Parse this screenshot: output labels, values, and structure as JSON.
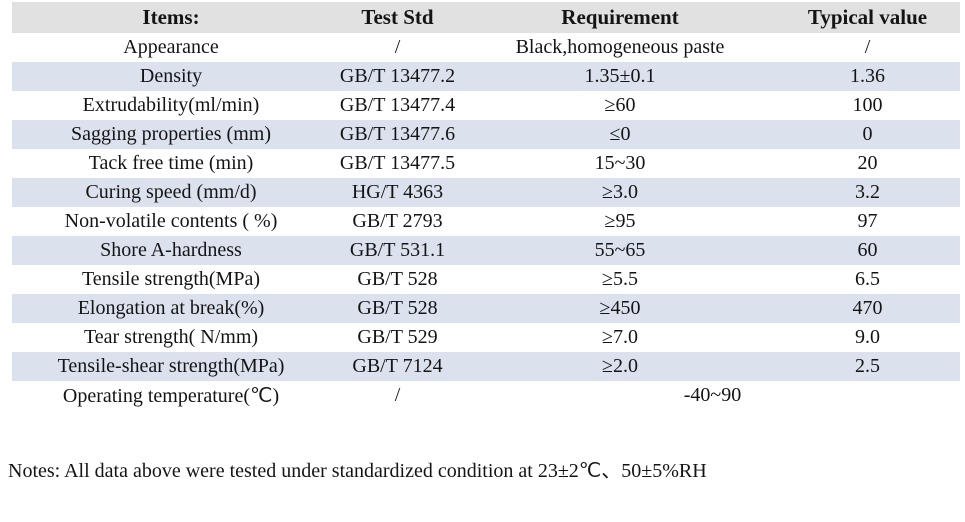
{
  "table": {
    "columns": [
      {
        "label": "Items:"
      },
      {
        "label": "Test Std"
      },
      {
        "label": "Requirement"
      },
      {
        "label": "Typical value"
      }
    ],
    "rows": [
      {
        "item": "Appearance",
        "test_std": "/",
        "requirement": "Black,homogeneous paste",
        "typical": "/"
      },
      {
        "item": "Density",
        "test_std": "GB/T 13477.2",
        "requirement": "1.35±0.1",
        "typical": "1.36"
      },
      {
        "item": "Extrudability(ml/min)",
        "test_std": "GB/T 13477.4",
        "requirement": "≥60",
        "typical": "100"
      },
      {
        "item": "Sagging properties (mm)",
        "test_std": "GB/T 13477.6",
        "requirement": "≤0",
        "typical": "0"
      },
      {
        "item": "Tack free time (min)",
        "test_std": "GB/T 13477.5",
        "requirement": "15~30",
        "typical": "20"
      },
      {
        "item": "Curing speed (mm/d)",
        "test_std": "HG/T 4363",
        "requirement": "≥3.0",
        "typical": "3.2"
      },
      {
        "item": "Non-volatile contents ( %)",
        "test_std": "GB/T 2793",
        "requirement": "≥95",
        "typical": "97"
      },
      {
        "item": "Shore A-hardness",
        "test_std": "GB/T 531.1",
        "requirement": "55~65",
        "typical": "60"
      },
      {
        "item": "Tensile strength(MPa)",
        "test_std": "GB/T 528",
        "requirement": "≥5.5",
        "typical": "6.5"
      },
      {
        "item": "Elongation at break(%)",
        "test_std": "GB/T 528",
        "requirement": "≥450",
        "typical": "470"
      },
      {
        "item": "Tear strength( N/mm)",
        "test_std": "GB/T 529",
        "requirement": "≥7.0",
        "typical": "9.0"
      },
      {
        "item": "Tensile-shear strength(MPa)",
        "test_std": "GB/T 7124",
        "requirement": "≥2.0",
        "typical": "2.5"
      }
    ],
    "span_row": {
      "item": "Operating temperature(℃)",
      "test_std": "/",
      "requirement_span": "-40~90"
    }
  },
  "notes": "Notes: All data above were tested under standardized condition at 23±2℃、50±5%RH",
  "colors": {
    "header_bg": "#e1e1e1",
    "stripe_bg": "#dbe2ee",
    "text": "#141414"
  }
}
